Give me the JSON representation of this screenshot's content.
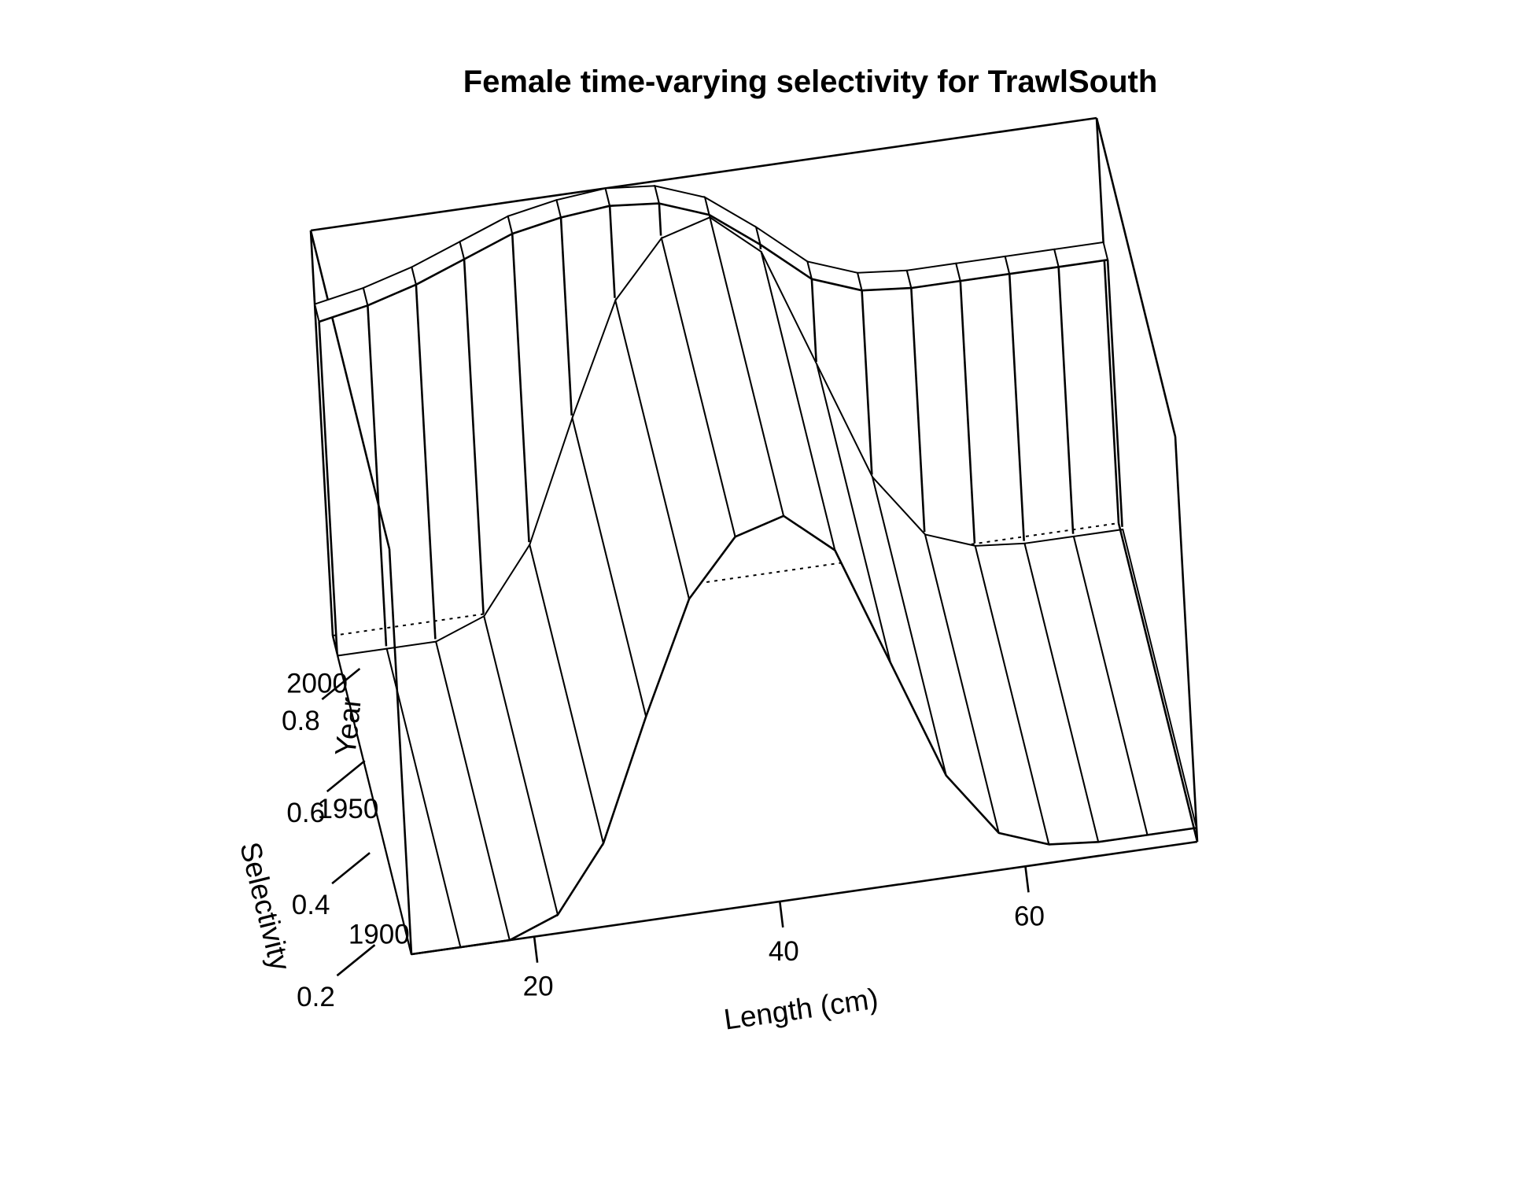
{
  "chart_data": {
    "type": "surface",
    "title": "Female time-varying selectivity for TrawlSouth",
    "xlabel": "Length (cm)",
    "ylabel": "Year",
    "zlabel": "Selectivity",
    "x_ticks": [
      20,
      40,
      60
    ],
    "y_ticks": [
      1900,
      1950,
      2000
    ],
    "z_ticks": [
      0.2,
      0.4,
      0.6,
      0.8
    ],
    "xlim": [
      10,
      74
    ],
    "ylim": [
      1892,
      2019
    ],
    "zlim": [
      0.12,
      1.0
    ],
    "series": [
      {
        "name": "",
        "year_range": [
          1892,
          2011
        ],
        "x": [
          10,
          14,
          18,
          22,
          26,
          30,
          34,
          38,
          42,
          46,
          50,
          54,
          58,
          62,
          66,
          70,
          74
        ],
        "values": [
          0.12,
          0.12,
          0.12,
          0.16,
          0.3,
          0.56,
          0.8,
          0.92,
          0.95,
          0.86,
          0.6,
          0.34,
          0.2,
          0.16,
          0.15,
          0.15,
          0.15
        ]
      },
      {
        "name": "",
        "year_range": [
          2012,
          2019
        ],
        "x": [
          10,
          14,
          18,
          22,
          26,
          30,
          34,
          38,
          42,
          46,
          50,
          54,
          58,
          62,
          66,
          70,
          74
        ],
        "values": [
          0.84,
          0.86,
          0.89,
          0.93,
          0.97,
          0.99,
          1.0,
          0.99,
          0.95,
          0.87,
          0.78,
          0.74,
          0.73,
          0.73,
          0.73,
          0.73,
          0.73
        ]
      }
    ],
    "grid": false
  }
}
